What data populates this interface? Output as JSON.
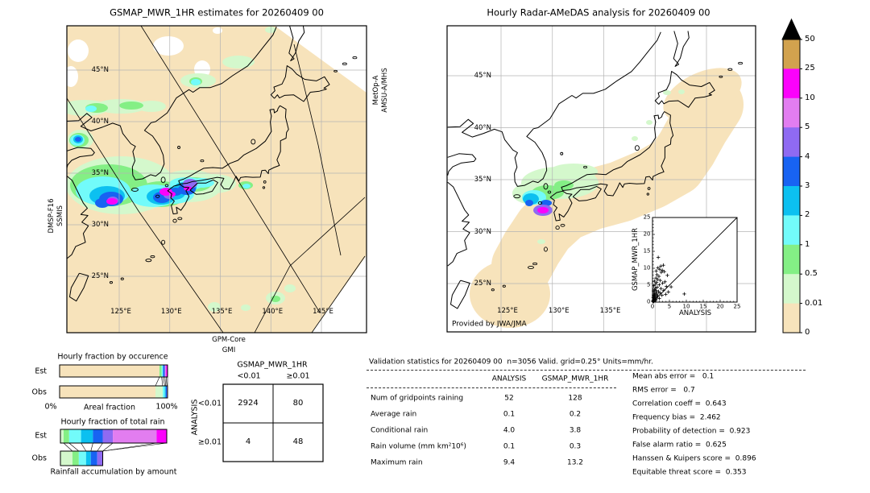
{
  "satellites": {
    "dmsp": "DMSP-F16",
    "ssmis": "SSMIS",
    "metop": "MetOp-A",
    "amsu": "AMSU-A/MHS",
    "gpm": "GPM-Core",
    "gmi": "GMI"
  },
  "chart_data": [
    {
      "id": "left_map",
      "type": "map",
      "title": "GSMAP_MWR_1HR estimates for 20260409 00",
      "lat_ticks": [
        "45°N",
        "40°N",
        "35°N",
        "30°N",
        "25°N"
      ],
      "lon_ticks": [
        "125°E",
        "130°E",
        "135°E",
        "140°E",
        "145°E"
      ]
    },
    {
      "id": "right_map",
      "type": "map",
      "title": "Hourly Radar-AMeDAS analysis for 20260409 00",
      "lat_ticks": [
        "45°N",
        "40°N",
        "35°N",
        "30°N",
        "25°N"
      ],
      "lon_ticks": [
        "125°E",
        "130°E",
        "135°E"
      ],
      "credit": "Provided by JWA/JMA",
      "colorbar": {
        "tick_labels": [
          "50",
          "25",
          "10",
          "5",
          "4",
          "3",
          "2",
          "1",
          "0.5",
          "0.01",
          "0"
        ],
        "segment_colors_top_to_bottom": [
          "#d2a24e",
          "#fb02fb",
          "#e27df0",
          "#8f6af2",
          "#1863f2",
          "#0cc0f0",
          "#72fbfa",
          "#84ef85",
          "#d4f8cc",
          "#f7e3bb"
        ],
        "over_color": "#000000"
      }
    },
    {
      "id": "scatter_inset",
      "type": "scatter",
      "xlabel": "ANALYSIS",
      "ylabel": "GSMAP_MWR_1HR",
      "xlim": [
        0,
        25
      ],
      "ylim": [
        0,
        25
      ],
      "xticks": [
        0,
        5,
        10,
        15,
        20,
        25
      ],
      "yticks": [
        0,
        5,
        10,
        15,
        20,
        25
      ],
      "diagonal": true,
      "marker": "+",
      "points": [
        [
          0.1,
          0.3
        ],
        [
          0.2,
          0.1
        ],
        [
          0.2,
          1.4
        ],
        [
          0.3,
          0.6
        ],
        [
          0.3,
          2.1
        ],
        [
          0.3,
          3.3
        ],
        [
          0.4,
          0.2
        ],
        [
          0.4,
          1.0
        ],
        [
          0.4,
          4.8
        ],
        [
          0.5,
          0.4
        ],
        [
          0.5,
          1.8
        ],
        [
          0.5,
          2.6
        ],
        [
          0.6,
          0.9
        ],
        [
          0.6,
          3.6
        ],
        [
          0.6,
          6.2
        ],
        [
          0.7,
          1.3
        ],
        [
          0.7,
          2.2
        ],
        [
          0.8,
          0.5
        ],
        [
          0.8,
          4.1
        ],
        [
          0.9,
          1.7
        ],
        [
          0.9,
          5.3
        ],
        [
          1.0,
          0.7
        ],
        [
          1.0,
          2.9
        ],
        [
          1.0,
          7.1
        ],
        [
          1.1,
          3.4
        ],
        [
          1.1,
          9.2
        ],
        [
          1.2,
          1.2
        ],
        [
          1.2,
          5.8
        ],
        [
          1.3,
          2.4
        ],
        [
          1.3,
          8.1
        ],
        [
          1.4,
          4.4
        ],
        [
          1.5,
          1.9
        ],
        [
          1.5,
          6.7
        ],
        [
          1.6,
          10.1
        ],
        [
          1.7,
          13.2
        ],
        [
          1.8,
          3.1
        ],
        [
          1.9,
          7.6
        ],
        [
          2.0,
          1.1
        ],
        [
          2.0,
          5.1
        ],
        [
          2.1,
          9.7
        ],
        [
          2.2,
          2.7
        ],
        [
          2.3,
          6.4
        ],
        [
          2.4,
          10.6
        ],
        [
          2.5,
          4.0
        ],
        [
          2.6,
          8.8
        ],
        [
          2.8,
          2.0
        ],
        [
          2.9,
          9.4
        ],
        [
          3.0,
          5.6
        ],
        [
          3.2,
          10.9
        ],
        [
          3.3,
          3.5
        ],
        [
          3.5,
          9.0
        ],
        [
          3.7,
          6.0
        ],
        [
          3.9,
          2.3
        ],
        [
          4.1,
          4.6
        ],
        [
          4.4,
          7.9
        ],
        [
          4.7,
          3.0
        ],
        [
          5.5,
          4.5
        ],
        [
          9.4,
          2.4
        ]
      ]
    },
    {
      "id": "occurrence",
      "type": "bar",
      "orientation": "horizontal",
      "stacked": true,
      "title": "Hourly fraction by occurence",
      "xlabel": "Areal fraction",
      "xtick_labels": [
        "0%",
        "100%"
      ],
      "categories": [
        "Est",
        "Obs"
      ],
      "series": [
        {
          "category": "Est",
          "segments": [
            {
              "color": "#f7e3bb",
              "frac": 0.925
            },
            {
              "color": "#84ef85",
              "frac": 0.02
            },
            {
              "color": "#72fbfa",
              "frac": 0.013
            },
            {
              "color": "#1863f2",
              "frac": 0.017
            },
            {
              "color": "#e27df0",
              "frac": 0.012
            },
            {
              "color": "#fb02fb",
              "frac": 0.013
            }
          ]
        },
        {
          "category": "Obs",
          "segments": [
            {
              "color": "#f7e3bb",
              "frac": 0.888
            },
            {
              "color": "#d4f8cc",
              "frac": 0.067
            },
            {
              "color": "#72fbfa",
              "frac": 0.019
            },
            {
              "color": "#0cc0f0",
              "frac": 0.009
            },
            {
              "color": "#1863f2",
              "frac": 0.011
            },
            {
              "color": "#8f6af2",
              "frac": 0.006
            }
          ]
        }
      ]
    },
    {
      "id": "totalrain",
      "type": "bar",
      "orientation": "horizontal",
      "stacked": true,
      "title": "Hourly fraction of total rain",
      "caption": "Rainfall accumulation by amount",
      "categories": [
        "Est",
        "Obs"
      ],
      "bar_total": {
        "Est": 1.0,
        "Obs": 0.398
      },
      "series": [
        {
          "category": "Est",
          "segments": [
            {
              "color": "#d4f8cc",
              "frac": 0.03
            },
            {
              "color": "#84ef85",
              "frac": 0.052
            },
            {
              "color": "#72fbfa",
              "frac": 0.112
            },
            {
              "color": "#0cc0f0",
              "frac": 0.112
            },
            {
              "color": "#1863f2",
              "frac": 0.092
            },
            {
              "color": "#8f6af2",
              "frac": 0.095
            },
            {
              "color": "#e27df0",
              "frac": 0.412
            },
            {
              "color": "#fb02fb",
              "frac": 0.095
            }
          ]
        },
        {
          "category": "Obs",
          "segments": [
            {
              "color": "#d4f8cc",
              "frac": 0.113
            },
            {
              "color": "#84ef85",
              "frac": 0.06
            },
            {
              "color": "#72fbfa",
              "frac": 0.068
            },
            {
              "color": "#0cc0f0",
              "frac": 0.045
            },
            {
              "color": "#1863f2",
              "frac": 0.06
            },
            {
              "color": "#8f6af2",
              "frac": 0.052
            }
          ]
        }
      ]
    },
    {
      "id": "contingency",
      "type": "table",
      "title": "GSMAP_MWR_1HR",
      "row_axis_label": "ANALYSIS",
      "col_labels": [
        "<0.01",
        "≥0.01"
      ],
      "row_labels": [
        "<0.01",
        "≥0.01"
      ],
      "values": [
        [
          "2924",
          "80"
        ],
        [
          "4",
          "48"
        ]
      ]
    },
    {
      "id": "validation",
      "type": "table",
      "title": "Validation statistics for 20260409 00  n=3056 Valid. grid=0.25° Units=mm/hr.",
      "col_headers": [
        "ANALYSIS",
        "GSMAP_MWR_1HR"
      ],
      "rows": [
        {
          "label": "Num of gridpoints raining",
          "analysis": "52",
          "gsmap": "128"
        },
        {
          "label": "Average rain",
          "analysis": "0.1",
          "gsmap": "0.2"
        },
        {
          "label": "Conditional rain",
          "analysis": "4.0",
          "gsmap": "3.8"
        },
        {
          "label": "Rain volume (mm km²10⁶)",
          "analysis": "0.1",
          "gsmap": "0.3"
        },
        {
          "label": "Maximum rain",
          "analysis": "9.4",
          "gsmap": "13.2"
        }
      ],
      "scores": [
        "Mean abs error =   0.1",
        "RMS error =   0.7",
        "Correlation coeff =  0.643",
        "Frequency bias =  2.462",
        "Probability of detection =  0.923",
        "False alarm ratio =  0.625",
        "Hanssen & Kuipers score =  0.896",
        "Equitable threat score =  0.353"
      ]
    }
  ]
}
